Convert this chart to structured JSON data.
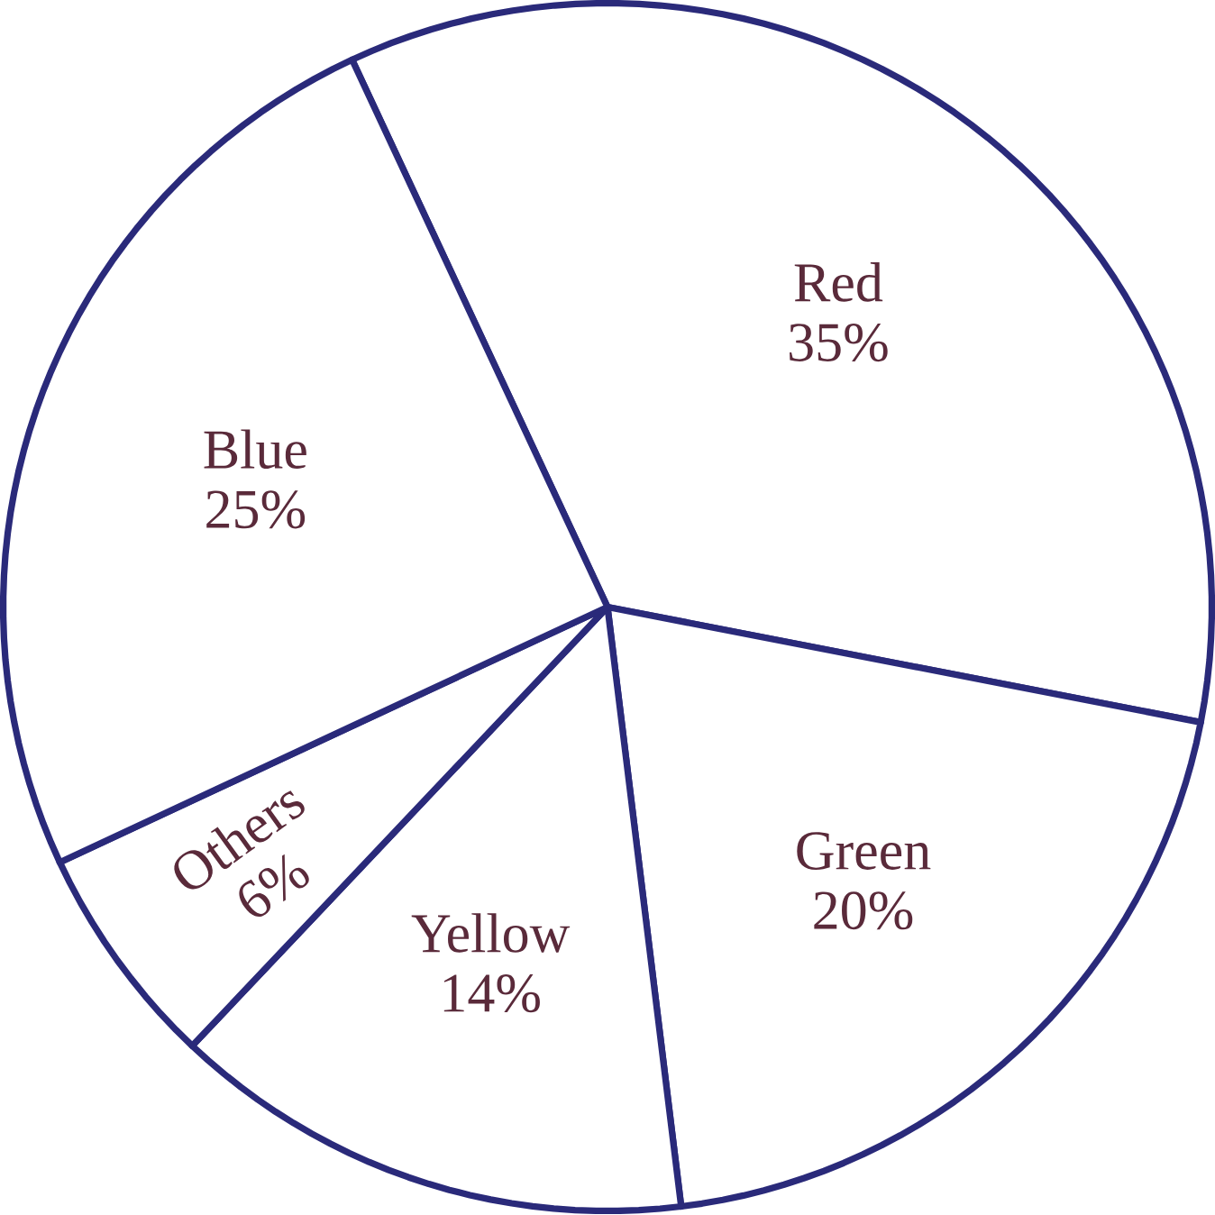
{
  "chart_data": {
    "type": "pie",
    "categories": [
      "Red",
      "Green",
      "Yellow",
      "Others",
      "Blue"
    ],
    "values": [
      35,
      20,
      14,
      6,
      25
    ],
    "value_labels": [
      "35%",
      "20%",
      "14%",
      "6%",
      "25%"
    ],
    "colors": [
      "#ffffff",
      "#ffffff",
      "#ffffff",
      "#ffffff",
      "#ffffff"
    ]
  }
}
